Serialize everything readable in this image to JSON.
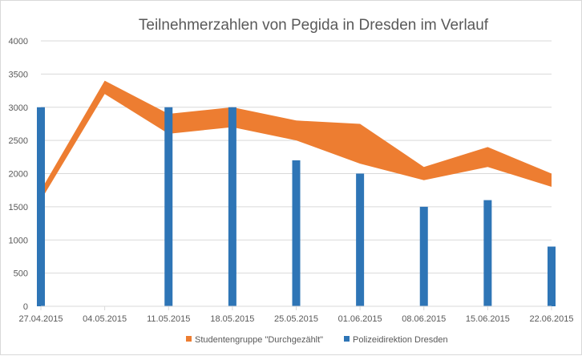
{
  "chart_data": {
    "type": "bar",
    "title": "Teilnehmerzahlen von Pegida in Dresden im Verlauf",
    "xlabel": "",
    "ylabel": "",
    "ylim": [
      0,
      4000
    ],
    "y_ticks": [
      "0",
      "500",
      "1000",
      "1500",
      "2000",
      "2500",
      "3000",
      "3500",
      "4000"
    ],
    "categories": [
      "27.04.2015",
      "04.05.2015",
      "11.05.2015",
      "18.05.2015",
      "25.05.2015",
      "01.06.2015",
      "08.06.2015",
      "15.06.2015",
      "22.06.2015"
    ],
    "grid": true,
    "legend_position": "bottom",
    "series": [
      {
        "name": "Studentengruppe \"Durchgezählt\"",
        "kind": "range-area",
        "color": "#ED7D31",
        "low": [
          1600,
          3200,
          2600,
          2700,
          2500,
          2150,
          1900,
          2100,
          1800
        ],
        "high": [
          1750,
          3400,
          2900,
          3000,
          2800,
          2750,
          2100,
          2400,
          2000
        ]
      },
      {
        "name": "Polizeidirektion Dresden",
        "kind": "bar",
        "color": "#2E75B6",
        "values": [
          3000,
          null,
          3000,
          3000,
          2200,
          2000,
          1500,
          1600,
          900
        ]
      }
    ]
  }
}
